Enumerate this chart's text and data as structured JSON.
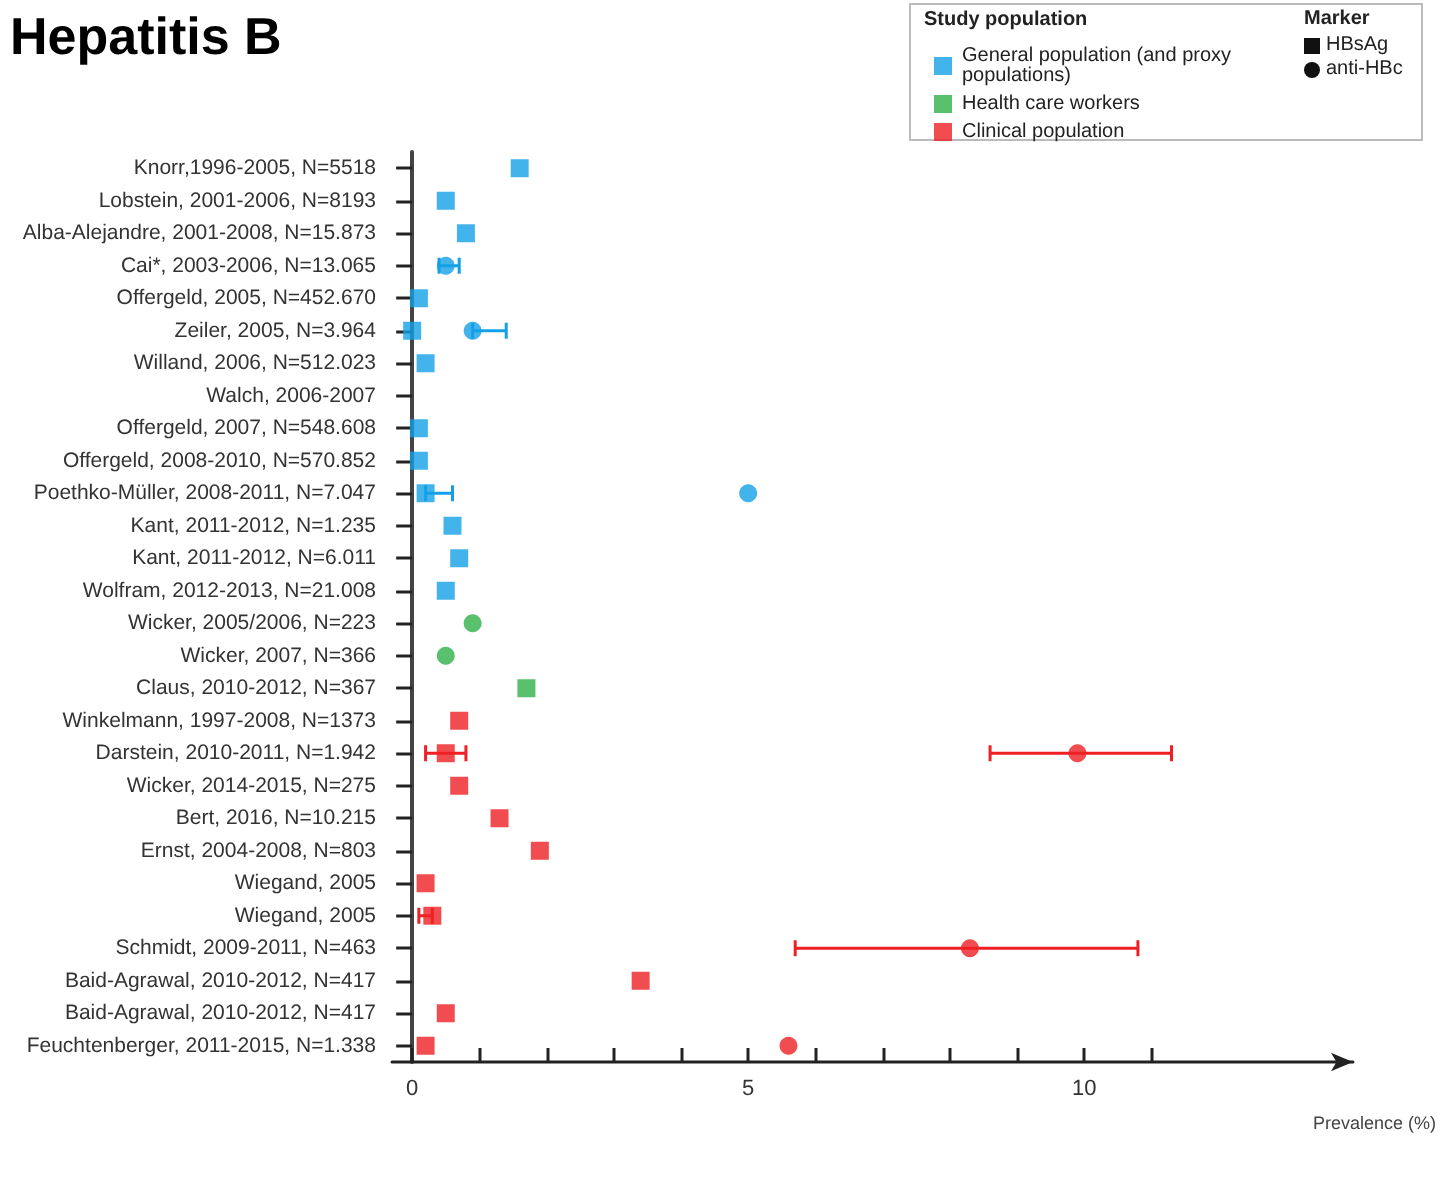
{
  "chart_data": {
    "type": "scatter",
    "title": "Hepatitis B",
    "orientation": "horizontal",
    "xlabel": "Prevalence (%)",
    "legend_title": "Study population",
    "legend": "top right",
    "grid": false,
    "annotations": [
      "Marker",
      "HBsAg",
      "anti-HBc"
    ],
    "categories": [
      "Knorr,1996-2005, N=5518",
      "Lobstein, 2001-2006, N=8193",
      "Alba-Alejandre, 2001-2008, N=15.873",
      "Cai*, 2003-2006, N=13.065",
      "Offergeld, 2005, N=452.670",
      "Zeiler, 2005, N=3.964",
      "Willand, 2006, N=512.023",
      "Walch, 2006-2007",
      "Offergeld, 2007, N=548.608",
      "Offergeld, 2008-2010, N=570.852",
      "Poethko-Müller, 2008-2011, N=7.047",
      "Kant, 2011-2012, N=1.235",
      "Kant, 2011-2012, N=6.011",
      "Wolfram, 2012-2013, N=21.008",
      "Wicker, 2005/2006, N=223",
      "Wicker, 2007, N=366",
      "Claus, 2010-2012, N=367",
      "Winkelmann, 1997-2008, N=1373",
      "Darstein, 2010-2011, N=1.942",
      "Wicker, 2014-2015, N=275",
      "Bert, 2016, N=10.215",
      "Ernst, 2004-2008, N=803",
      "Wiegand, 2005",
      "Wiegand, 2005",
      "Schmidt, 2009-2011, N=463",
      "Baid-Agrawal, 2010-2012, N=417",
      "Baid-Agrawal, 2010-2012, N=417",
      "Feuchtenberger, 2011-2015, N=1.338"
    ],
    "xlim": [
      -0.3,
      14
    ],
    "xticks": [
      0,
      {
        "value": 1,
        "label": null
      },
      {
        "value": 2,
        "label": null
      },
      {
        "value": 3,
        "label": null
      },
      {
        "value": 4,
        "label": null
      },
      5,
      {
        "value": 6,
        "label": null
      },
      {
        "value": 7,
        "label": null
      },
      {
        "value": 8,
        "label": null
      },
      {
        "value": 9,
        "label": null
      },
      10,
      {
        "value": 11,
        "label": null
      }
    ],
    "series": [
      {
        "name": "General population (and proxy populations)",
        "color": "#14a0e6",
        "marker": "square",
        "values": [
          1.6,
          0.5,
          0.8,
          null,
          0.1,
          0.0,
          0.2,
          null,
          0.1,
          0.1,
          0.2,
          0.6,
          0.7,
          0.5,
          null,
          null,
          null,
          null,
          null,
          null,
          null,
          null,
          null,
          null,
          null,
          null,
          null,
          null
        ],
        "errors": [
          null,
          null,
          null,
          null,
          null,
          null,
          null,
          null,
          null,
          null,
          [
            0.2,
            0.6
          ],
          null,
          null,
          null,
          null,
          null,
          null,
          null,
          null,
          null,
          null,
          null,
          null,
          null,
          null,
          null,
          null,
          null
        ]
      },
      {
        "color": "#14a0e6",
        "marker": "circle",
        "values": [
          null,
          null,
          null,
          0.5,
          null,
          0.9,
          null,
          null,
          null,
          null,
          5.0,
          null,
          null,
          null,
          null,
          null,
          null,
          null,
          null,
          null,
          null,
          null,
          null,
          null,
          null,
          null,
          null,
          null
        ],
        "errors": [
          null,
          null,
          null,
          [
            0.4,
            0.7
          ],
          null,
          [
            0.9,
            1.4
          ],
          null,
          null,
          null,
          null,
          null,
          null,
          null,
          null,
          null,
          null,
          null,
          null,
          null,
          null,
          null,
          null,
          null,
          null,
          null,
          null,
          null,
          null
        ]
      },
      {
        "name": "Health care workers",
        "color": "#2fb04a",
        "marker": "square",
        "values": [
          null,
          null,
          null,
          null,
          null,
          null,
          null,
          null,
          null,
          null,
          null,
          null,
          null,
          null,
          null,
          null,
          1.7,
          null,
          null,
          null,
          null,
          null,
          null,
          null,
          null,
          null,
          null,
          null
        ]
      },
      {
        "color": "#2fb04a",
        "marker": "circle",
        "values": [
          null,
          null,
          null,
          null,
          null,
          null,
          null,
          null,
          null,
          null,
          null,
          null,
          null,
          null,
          0.9,
          0.5,
          null,
          null,
          null,
          null,
          null,
          null,
          null,
          null,
          null,
          null,
          null,
          null
        ]
      },
      {
        "name": "Clinical population",
        "color": "#ee2024",
        "marker": "square",
        "values": [
          null,
          null,
          null,
          null,
          null,
          null,
          null,
          null,
          null,
          null,
          null,
          null,
          null,
          null,
          null,
          null,
          null,
          0.7,
          0.5,
          0.7,
          1.3,
          1.9,
          0.2,
          0.3,
          null,
          3.4,
          0.5,
          0.2
        ],
        "errors": [
          null,
          null,
          null,
          null,
          null,
          null,
          null,
          null,
          null,
          null,
          null,
          null,
          null,
          null,
          null,
          null,
          null,
          null,
          [
            0.2,
            0.8
          ],
          null,
          null,
          null,
          null,
          [
            0.1,
            0.3
          ],
          null,
          null,
          null,
          null
        ]
      },
      {
        "color": "#ee2024",
        "marker": "circle",
        "values": [
          null,
          null,
          null,
          null,
          null,
          null,
          null,
          null,
          null,
          null,
          null,
          null,
          null,
          null,
          null,
          null,
          null,
          null,
          9.9,
          null,
          null,
          null,
          null,
          null,
          8.3,
          null,
          null,
          5.6
        ],
        "errors": [
          null,
          null,
          null,
          null,
          null,
          null,
          null,
          null,
          null,
          null,
          null,
          null,
          null,
          null,
          null,
          null,
          null,
          null,
          [
            8.6,
            11.3
          ],
          null,
          null,
          null,
          null,
          null,
          [
            5.7,
            10.8
          ],
          null,
          null,
          null
        ]
      }
    ]
  }
}
